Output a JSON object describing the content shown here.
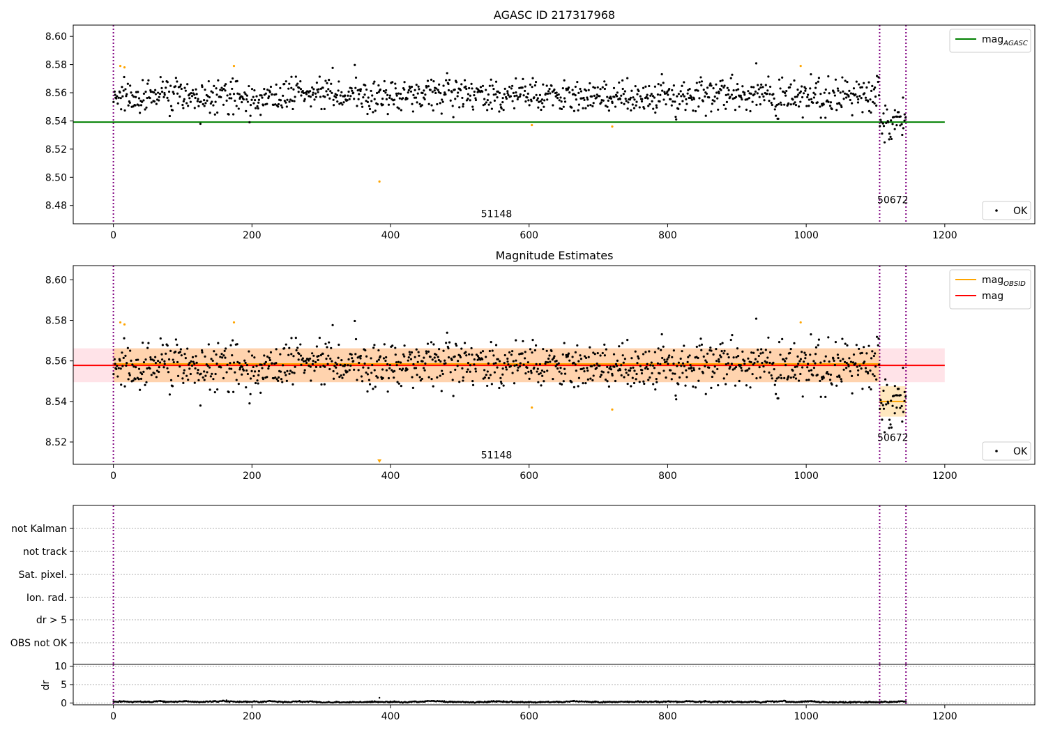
{
  "chart_data": [
    {
      "type": "scatter",
      "title": "AGASC ID 217317968",
      "xlim": [
        -58,
        1330
      ],
      "ylim": [
        8.467,
        8.608
      ],
      "xticks": [
        0,
        200,
        400,
        600,
        800,
        1000,
        1200
      ],
      "yticks": [
        8.48,
        8.5,
        8.52,
        8.54,
        8.56,
        8.58,
        8.6
      ],
      "ytick_labels": [
        "8.48",
        "8.50",
        "8.52",
        "8.54",
        "8.56",
        "8.58",
        "8.60"
      ],
      "grid": false,
      "vlines": [
        0,
        1106,
        1144
      ],
      "vline_color": "#800080",
      "hlines": [
        {
          "y": 8.5392,
          "x0": -58,
          "x1": 1200,
          "color": "#008000"
        }
      ],
      "annotations": [
        {
          "text": "51148",
          "x": 553,
          "y": 8.4716
        },
        {
          "text": "50672",
          "x": 1125,
          "y": 8.4816
        }
      ],
      "legend_lines": {
        "position": "top-right",
        "entries": [
          {
            "label": "mag",
            "subscript": "AGASC",
            "color": "#008000"
          }
        ]
      },
      "legend_points": {
        "position": "bottom-right",
        "entries": [
          {
            "label": "OK",
            "color": "#000000"
          }
        ]
      },
      "outliers": [
        {
          "x": 10,
          "y": 8.579
        },
        {
          "x": 16,
          "y": 8.578
        },
        {
          "x": 174,
          "y": 8.579
        },
        {
          "x": 384,
          "y": 8.497
        },
        {
          "x": 604,
          "y": 8.537
        },
        {
          "x": 720,
          "y": 8.536
        },
        {
          "x": 992,
          "y": 8.579
        }
      ],
      "outlier_color": "#FFA500",
      "series": [
        {
          "segment": 1,
          "x_start": 0,
          "x_end": 1106,
          "mean": 8.558,
          "spread": 0.007
        },
        {
          "segment": 2,
          "x_start": 1106,
          "x_end": 1144,
          "mean": 8.539,
          "spread": 0.006
        }
      ]
    },
    {
      "type": "scatter",
      "title": "Magnitude Estimates",
      "xlim": [
        -58,
        1330
      ],
      "ylim": [
        8.509,
        8.607
      ],
      "xticks": [
        0,
        200,
        400,
        600,
        800,
        1000,
        1200
      ],
      "yticks": [
        8.52,
        8.54,
        8.56,
        8.58,
        8.6
      ],
      "ytick_labels": [
        "8.52",
        "8.54",
        "8.56",
        "8.58",
        "8.60"
      ],
      "grid": false,
      "vlines": [
        0,
        1106,
        1144
      ],
      "vline_color": "#800080",
      "bands": [
        {
          "x0": -58,
          "x1": 1200,
          "y0": 8.5495,
          "y1": 8.5662,
          "color": "#FFC0CB",
          "opacity": 0.45
        },
        {
          "x0": 0,
          "x1": 1106,
          "y0": 8.5495,
          "y1": 8.5662,
          "color": "#FFA500",
          "opacity": 0.25
        },
        {
          "x0": 1106,
          "x1": 1144,
          "y0": 8.5325,
          "y1": 8.5475,
          "color": "#FFA500",
          "opacity": 0.25
        }
      ],
      "hlines": [
        {
          "y": 8.5585,
          "x0": 0,
          "x1": 1106,
          "color": "#FFA500"
        },
        {
          "y": 8.54,
          "x0": 1106,
          "x1": 1144,
          "color": "#FFA500"
        },
        {
          "y": 8.5578,
          "x0": -58,
          "x1": 1200,
          "color": "#FF0000"
        }
      ],
      "annotations": [
        {
          "text": "51148",
          "x": 553,
          "y": 8.5119
        },
        {
          "text": "50672",
          "x": 1125,
          "y": 8.5205
        }
      ],
      "legend_lines": {
        "position": "top-right",
        "entries": [
          {
            "label": "mag",
            "subscript": "OBSID",
            "color": "#FFA500"
          },
          {
            "label": "mag",
            "subscript": "",
            "color": "#FF0000"
          }
        ]
      },
      "legend_points": {
        "position": "bottom-right",
        "entries": [
          {
            "label": "OK",
            "color": "#000000"
          }
        ]
      },
      "outliers": [
        {
          "x": 10,
          "y": 8.579
        },
        {
          "x": 16,
          "y": 8.578
        },
        {
          "x": 174,
          "y": 8.579
        },
        {
          "x": 604,
          "y": 8.537
        },
        {
          "x": 720,
          "y": 8.536
        },
        {
          "x": 992,
          "y": 8.579
        }
      ],
      "clipped_markers": [
        {
          "x": 384,
          "y": 8.51
        }
      ],
      "outlier_color": "#FFA500",
      "series": [
        {
          "segment": 1,
          "x_start": 0,
          "x_end": 1106,
          "mean": 8.558,
          "spread": 0.007
        },
        {
          "segment": 2,
          "x_start": 1106,
          "x_end": 1144,
          "mean": 8.539,
          "spread": 0.006
        }
      ]
    },
    {
      "type": "table",
      "xlim": [
        -58,
        1330
      ],
      "row_labels": [
        "not Kalman",
        "not track",
        "Sat. pixel.",
        "Ion. rad.",
        "dr > 5",
        "OBS not OK"
      ],
      "grid": true,
      "vlines": [
        0,
        1106,
        1144
      ],
      "vline_color": "#800080",
      "flag_points": []
    },
    {
      "type": "line",
      "ylabel": "dr",
      "xlim": [
        -58,
        1330
      ],
      "ylim": [
        -0.5,
        10.5
      ],
      "xticks": [
        0,
        200,
        400,
        600,
        800,
        1000,
        1200
      ],
      "yticks": [
        0,
        5,
        10
      ],
      "ytick_labels": [
        "0",
        "5",
        "10"
      ],
      "grid": true,
      "vlines": [
        0,
        1106,
        1144
      ],
      "vline_color": "#800080",
      "series": [
        {
          "segment": 1,
          "x_start": 0,
          "x_end": 1144,
          "mean": 0.3,
          "spread": 0.2
        }
      ],
      "spikes": [
        {
          "x": 384,
          "y": 1.4
        }
      ]
    }
  ]
}
